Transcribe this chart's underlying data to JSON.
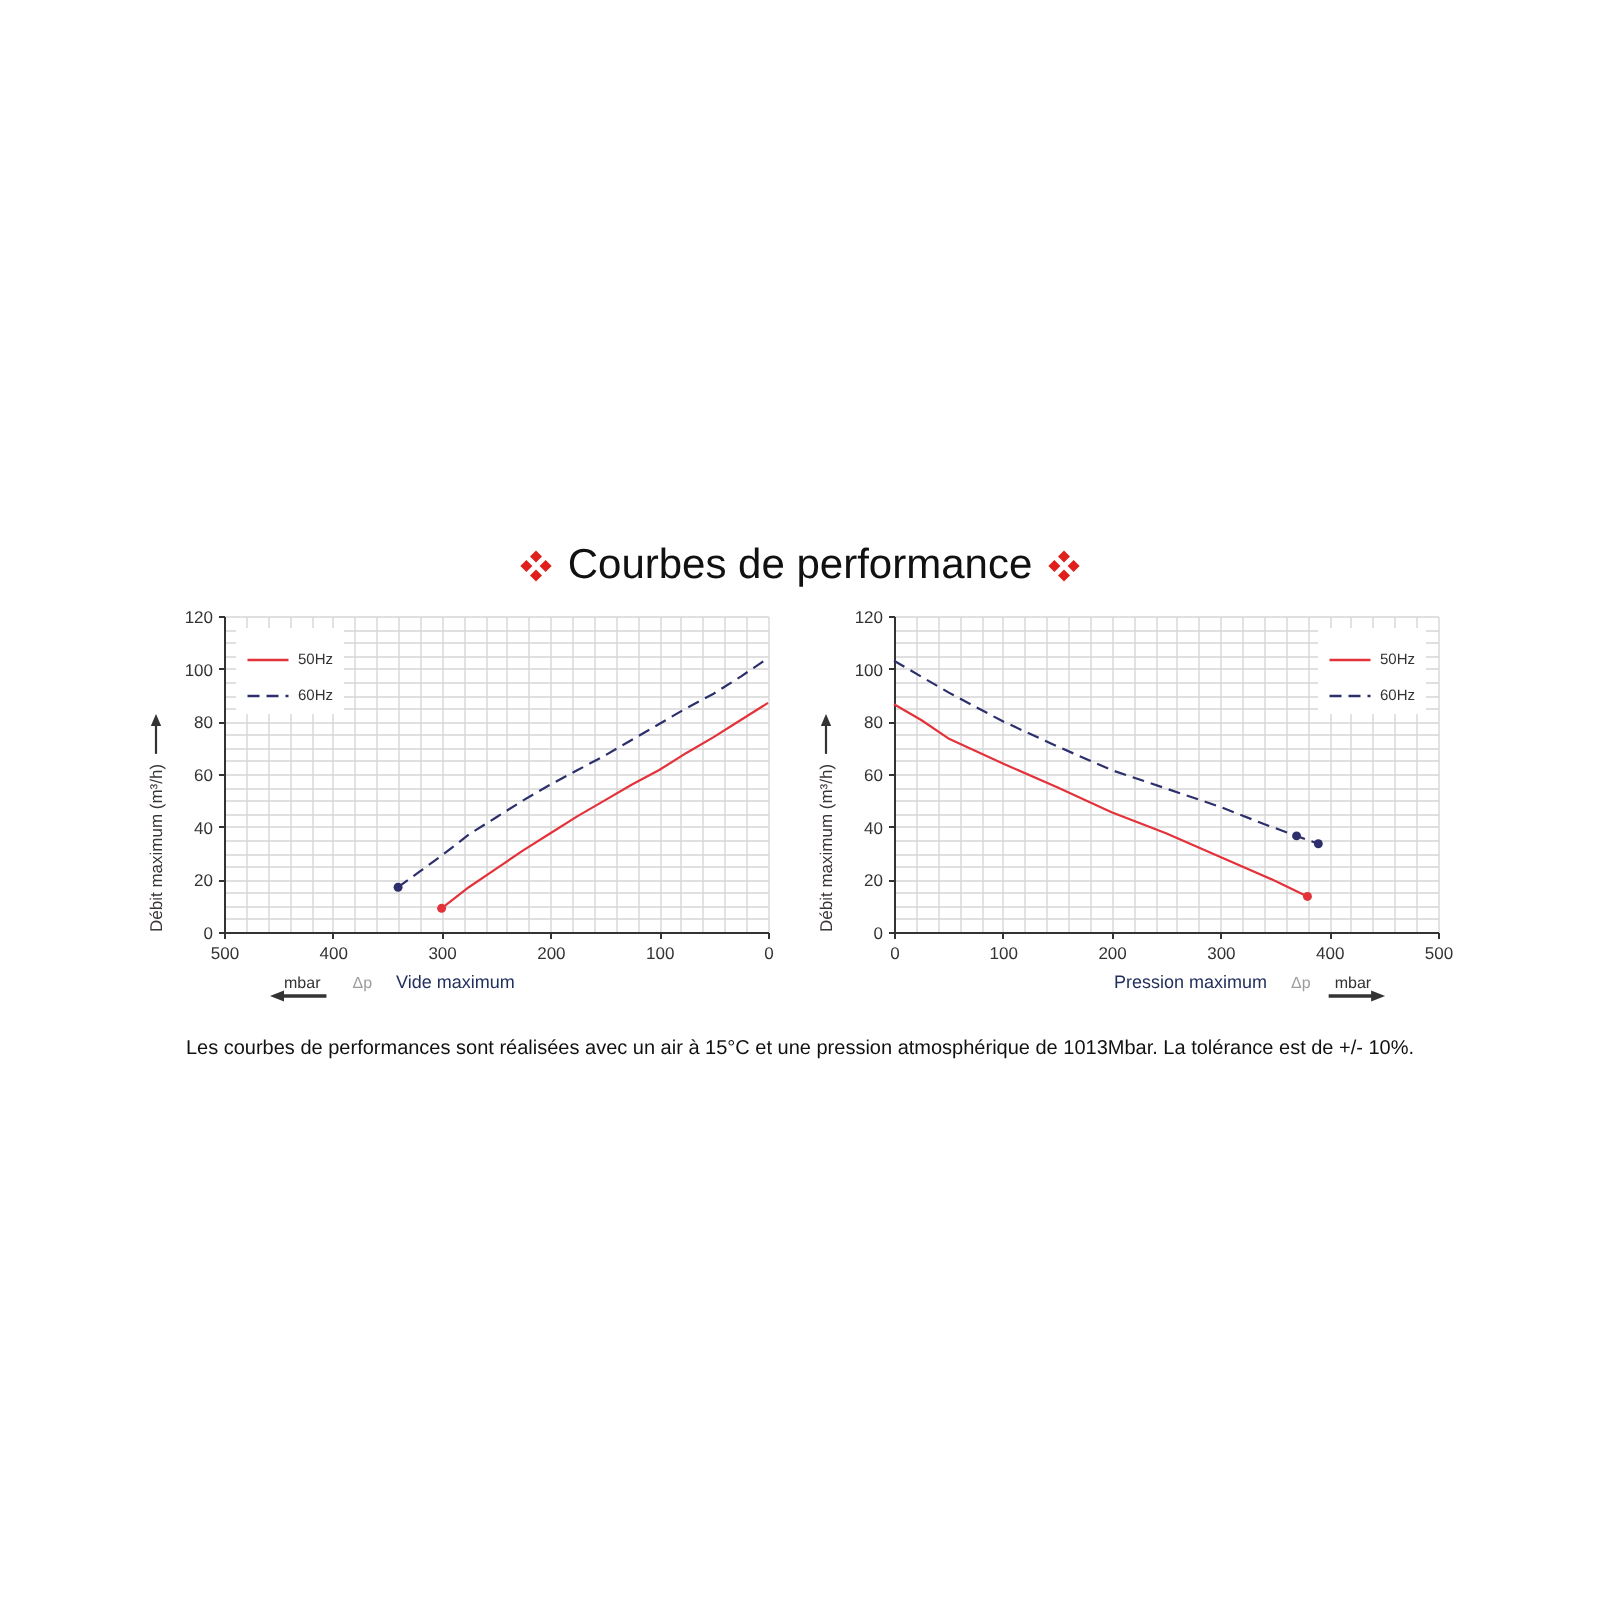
{
  "chart_data": [
    {
      "type": "line",
      "title": "Courbes de performance",
      "xlabel": "Vide maximum",
      "ylabel": "Débit maximum (m³/h)",
      "annotations": [
        "Δp",
        "mbar",
        "Les courbes de performances sont réalisées avec un air à 15°C et une pression atmosphérique de 1013Mbar. La tolérance est de +/- 10%."
      ],
      "xlim": [
        500,
        0
      ],
      "ylim": [
        0,
        120
      ],
      "xticks": [
        500,
        {
          "value": 480,
          "label": null
        },
        {
          "value": 460,
          "label": null
        },
        {
          "value": 440,
          "label": null
        },
        {
          "value": 420,
          "label": null
        },
        400,
        {
          "value": 380,
          "label": null
        },
        {
          "value": 360,
          "label": null
        },
        {
          "value": 340,
          "label": null
        },
        {
          "value": 320,
          "label": null
        },
        300,
        {
          "value": 280,
          "label": null
        },
        {
          "value": 260,
          "label": null
        },
        {
          "value": 240,
          "label": null
        },
        {
          "value": 220,
          "label": null
        },
        200,
        {
          "value": 180,
          "label": null
        },
        {
          "value": 160,
          "label": null
        },
        {
          "value": 140,
          "label": null
        },
        {
          "value": 120,
          "label": null
        },
        100,
        {
          "value": 80,
          "label": null
        },
        {
          "value": 60,
          "label": null
        },
        {
          "value": 40,
          "label": null
        },
        {
          "value": 20,
          "label": null
        },
        0
      ],
      "yticks": [
        0,
        {
          "value": 5,
          "label": null
        },
        {
          "value": 10,
          "label": null
        },
        {
          "value": 15,
          "label": null
        },
        20,
        {
          "value": 25,
          "label": null
        },
        {
          "value": 30,
          "label": null
        },
        {
          "value": 35,
          "label": null
        },
        40,
        {
          "value": 45,
          "label": null
        },
        {
          "value": 50,
          "label": null
        },
        {
          "value": 55,
          "label": null
        },
        60,
        {
          "value": 65,
          "label": null
        },
        {
          "value": 70,
          "label": null
        },
        {
          "value": 75,
          "label": null
        },
        80,
        {
          "value": 85,
          "label": null
        },
        {
          "value": 90,
          "label": null
        },
        {
          "value": 95,
          "label": null
        },
        100,
        {
          "value": 105,
          "label": null
        },
        {
          "value": 110,
          "label": null
        },
        {
          "value": 115,
          "label": null
        },
        120
      ],
      "grid": true,
      "legend": "top left",
      "series": [
        {
          "name": "50Hz",
          "color": "#e3323a",
          "line_style": "solid",
          "x": [
            300,
            275,
            250,
            225,
            200,
            175,
            150,
            125,
            100,
            75,
            50,
            25,
            0
          ],
          "values": [
            9,
            17,
            24,
            31,
            37.5,
            44,
            50,
            56,
            61.5,
            68,
            74,
            80.5,
            87
          ]
        },
        {
          "name": "60Hz",
          "color": "#2c2f6b",
          "line_style": "dashed",
          "x": [
            340,
            320,
            300,
            275,
            250,
            225,
            200,
            175,
            150,
            125,
            100,
            75,
            50,
            25,
            0
          ],
          "values": [
            17,
            23,
            29,
            37,
            43.5,
            50,
            56,
            61.5,
            67,
            73,
            79,
            85,
            90.5,
            97,
            104
          ]
        },
        {
          "type": "scatter",
          "color": "#e3323a",
          "marker": "circle",
          "x": [
            300
          ],
          "values": [
            9
          ]
        },
        {
          "type": "scatter",
          "color": "#2c2f6b",
          "marker": "circle",
          "x": [
            340
          ],
          "values": [
            17
          ]
        }
      ]
    },
    {
      "type": "line",
      "xlabel": "Pression maximum",
      "ylabel": "Débit maximum (m³/h)",
      "annotations": [
        "Δp",
        "mbar"
      ],
      "xlim": [
        0,
        500
      ],
      "ylim": [
        0,
        120
      ],
      "xticks": [
        0,
        {
          "value": 20,
          "label": null
        },
        {
          "value": 40,
          "label": null
        },
        {
          "value": 60,
          "label": null
        },
        {
          "value": 80,
          "label": null
        },
        100,
        {
          "value": 120,
          "label": null
        },
        {
          "value": 140,
          "label": null
        },
        {
          "value": 160,
          "label": null
        },
        {
          "value": 180,
          "label": null
        },
        200,
        {
          "value": 220,
          "label": null
        },
        {
          "value": 240,
          "label": null
        },
        {
          "value": 260,
          "label": null
        },
        {
          "value": 280,
          "label": null
        },
        300,
        {
          "value": 320,
          "label": null
        },
        {
          "value": 340,
          "label": null
        },
        {
          "value": 360,
          "label": null
        },
        {
          "value": 380,
          "label": null
        },
        400,
        {
          "value": 420,
          "label": null
        },
        {
          "value": 440,
          "label": null
        },
        {
          "value": 460,
          "label": null
        },
        {
          "value": 480,
          "label": null
        },
        500
      ],
      "yticks": [
        0,
        {
          "value": 5,
          "label": null
        },
        {
          "value": 10,
          "label": null
        },
        {
          "value": 15,
          "label": null
        },
        20,
        {
          "value": 25,
          "label": null
        },
        {
          "value": 30,
          "label": null
        },
        {
          "value": 35,
          "label": null
        },
        40,
        {
          "value": 45,
          "label": null
        },
        {
          "value": 50,
          "label": null
        },
        {
          "value": 55,
          "label": null
        },
        60,
        {
          "value": 65,
          "label": null
        },
        {
          "value": 70,
          "label": null
        },
        {
          "value": 75,
          "label": null
        },
        80,
        {
          "value": 85,
          "label": null
        },
        {
          "value": 90,
          "label": null
        },
        {
          "value": 95,
          "label": null
        },
        100,
        {
          "value": 105,
          "label": null
        },
        {
          "value": 110,
          "label": null
        },
        {
          "value": 115,
          "label": null
        },
        120
      ],
      "grid": true,
      "legend": "top right",
      "series": [
        {
          "name": "50Hz",
          "color": "#e3323a",
          "line_style": "solid",
          "x": [
            0,
            25,
            50,
            100,
            150,
            200,
            250,
            300,
            350,
            380
          ],
          "values": [
            86.5,
            80.5,
            73.5,
            64,
            55,
            45.5,
            37.5,
            28.5,
            19.5,
            13.5
          ]
        },
        {
          "name": "60Hz",
          "color": "#2c2f6b",
          "line_style": "dashed",
          "x": [
            0,
            50,
            100,
            150,
            200,
            250,
            300,
            340,
            370,
            390
          ],
          "values": [
            103,
            91,
            80,
            70.5,
            61.5,
            54.5,
            47.5,
            41,
            36.5,
            33.5
          ]
        },
        {
          "type": "scatter",
          "color": "#e3323a",
          "marker": "circle",
          "x": [
            380
          ],
          "values": [
            13.5
          ]
        },
        {
          "type": "scatter",
          "color": "#2c2f6b",
          "marker": "circle",
          "x": [
            370,
            390
          ],
          "values": [
            36.5,
            33.5
          ]
        }
      ]
    }
  ]
}
